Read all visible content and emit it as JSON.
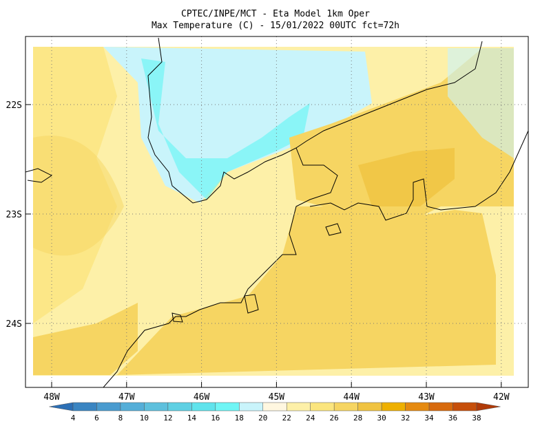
{
  "title": [
    "CPTEC/INPE/MCT -  Eta Model 1km Oper",
    "Max Temperature (C) - 15/01/2022 00UTC fct=72h"
  ],
  "lat_labels": [
    "22S",
    "23S",
    "24S"
  ],
  "lon_labels": [
    "48W",
    "47W",
    "46W",
    "45W",
    "44W",
    "43W",
    "42W"
  ],
  "colorbar": {
    "labels": [
      4,
      6,
      8,
      10,
      12,
      14,
      16,
      18,
      20,
      22,
      24,
      26,
      28,
      30,
      32,
      34,
      36,
      38
    ],
    "colors": [
      "#2c6fb5",
      "#3a85c2",
      "#4a9bcf",
      "#55aed8",
      "#5ec0dd",
      "#5fd0e3",
      "#5fe3ec",
      "#6ff5f5",
      "#c9f4fb",
      "#fff7e0",
      "#fdf0a8",
      "#fbe57e",
      "#f6d562",
      "#f0c341",
      "#eeb000",
      "#e58a10",
      "#d76a0d",
      "#c64f0a",
      "#b03a08"
    ]
  }
}
